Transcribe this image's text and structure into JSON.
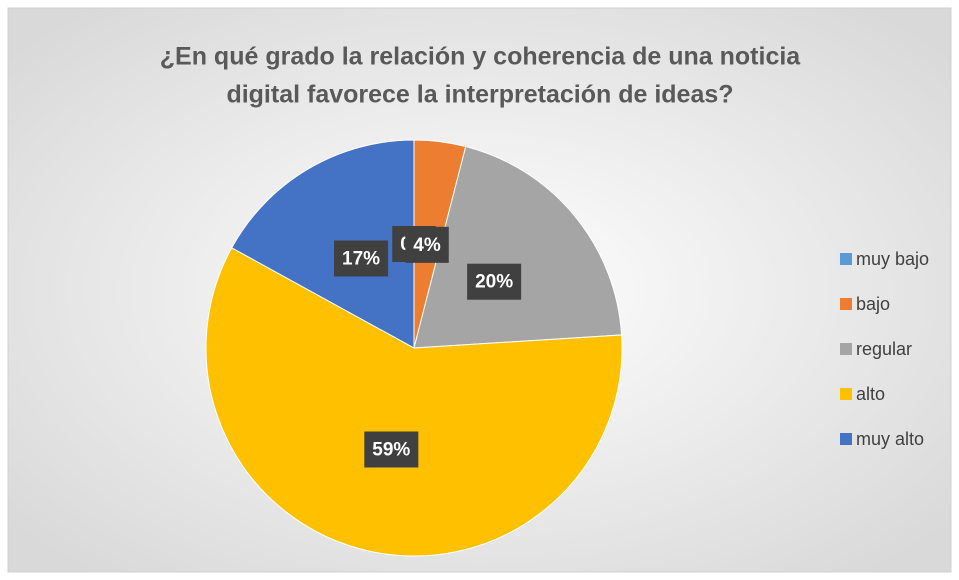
{
  "chart_data": {
    "type": "pie",
    "title": [
      "¿En qué grado la relación y coherencia de una noticia",
      "digital favorece la interpretación de ideas?"
    ],
    "categories": [
      "muy bajo",
      "bajo",
      "regular",
      "alto",
      "muy alto"
    ],
    "values": [
      0,
      4,
      20,
      59,
      17
    ],
    "value_labels": [
      "0%",
      "4%",
      "20%",
      "59%",
      "17%"
    ],
    "colors": [
      "#5b9bd5",
      "#ed7d31",
      "#a5a5a5",
      "#ffc000",
      "#4472c4"
    ],
    "legend": "right"
  }
}
